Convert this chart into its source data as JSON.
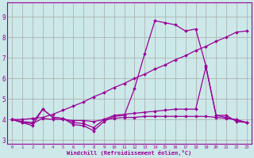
{
  "background_color": "#cce8e8",
  "line_color": "#990099",
  "grid_color": "#aaaaaa",
  "xlabel": "Windchill (Refroidissement éolien,°C)",
  "xlabel_color": "#990099",
  "xticks": [
    0,
    1,
    2,
    3,
    4,
    5,
    6,
    7,
    8,
    9,
    10,
    11,
    12,
    13,
    14,
    15,
    16,
    17,
    18,
    19,
    20,
    21,
    22,
    23
  ],
  "yticks": [
    3,
    4,
    5,
    6,
    7,
    8,
    9
  ],
  "xlim": [
    -0.5,
    23.5
  ],
  "ylim": [
    2.8,
    9.7
  ],
  "series": [
    {
      "x": [
        0,
        1,
        2,
        3,
        4,
        5,
        6,
        7,
        8,
        9,
        10,
        11,
        12,
        13,
        14,
        15,
        16,
        17,
        18,
        19,
        20,
        21,
        22,
        23
      ],
      "y": [
        4.0,
        3.85,
        3.7,
        4.5,
        4.1,
        4.05,
        3.75,
        3.7,
        3.45,
        3.9,
        4.15,
        4.2,
        5.5,
        7.2,
        8.8,
        8.7,
        8.6,
        8.3,
        8.4,
        6.6,
        4.2,
        4.2,
        3.9,
        3.85
      ]
    },
    {
      "x": [
        0,
        1,
        2,
        3,
        4,
        5,
        6,
        7,
        8,
        9,
        10,
        11,
        12,
        13,
        14,
        15,
        16,
        17,
        18,
        19,
        20,
        21,
        22,
        23
      ],
      "y": [
        4.0,
        3.85,
        3.8,
        4.05,
        4.0,
        4.0,
        3.95,
        3.95,
        3.9,
        4.0,
        4.05,
        4.1,
        4.1,
        4.15,
        4.15,
        4.15,
        4.15,
        4.15,
        4.15,
        4.15,
        4.1,
        4.05,
        4.0,
        3.85
      ]
    },
    {
      "x": [
        0,
        1,
        2,
        3,
        4,
        5,
        6,
        7,
        8,
        9,
        10,
        11,
        12,
        13,
        14,
        15,
        16,
        17,
        18,
        19,
        20,
        21,
        22,
        23
      ],
      "y": [
        4.0,
        4.0,
        4.05,
        4.1,
        4.25,
        4.45,
        4.65,
        4.85,
        5.1,
        5.3,
        5.55,
        5.75,
        6.0,
        6.2,
        6.45,
        6.65,
        6.9,
        7.1,
        7.35,
        7.55,
        7.8,
        8.0,
        8.25,
        8.3
      ]
    },
    {
      "x": [
        0,
        1,
        2,
        3,
        4,
        5,
        6,
        7,
        8,
        9,
        10,
        11,
        12,
        13,
        14,
        15,
        16,
        17,
        18,
        19,
        20,
        21,
        22,
        23
      ],
      "y": [
        4.0,
        3.9,
        3.85,
        4.5,
        4.1,
        4.05,
        3.85,
        3.8,
        3.6,
        4.0,
        4.2,
        4.25,
        4.3,
        4.35,
        4.4,
        4.45,
        4.5,
        4.5,
        4.5,
        6.55,
        4.2,
        4.1,
        3.95,
        3.85
      ]
    }
  ]
}
